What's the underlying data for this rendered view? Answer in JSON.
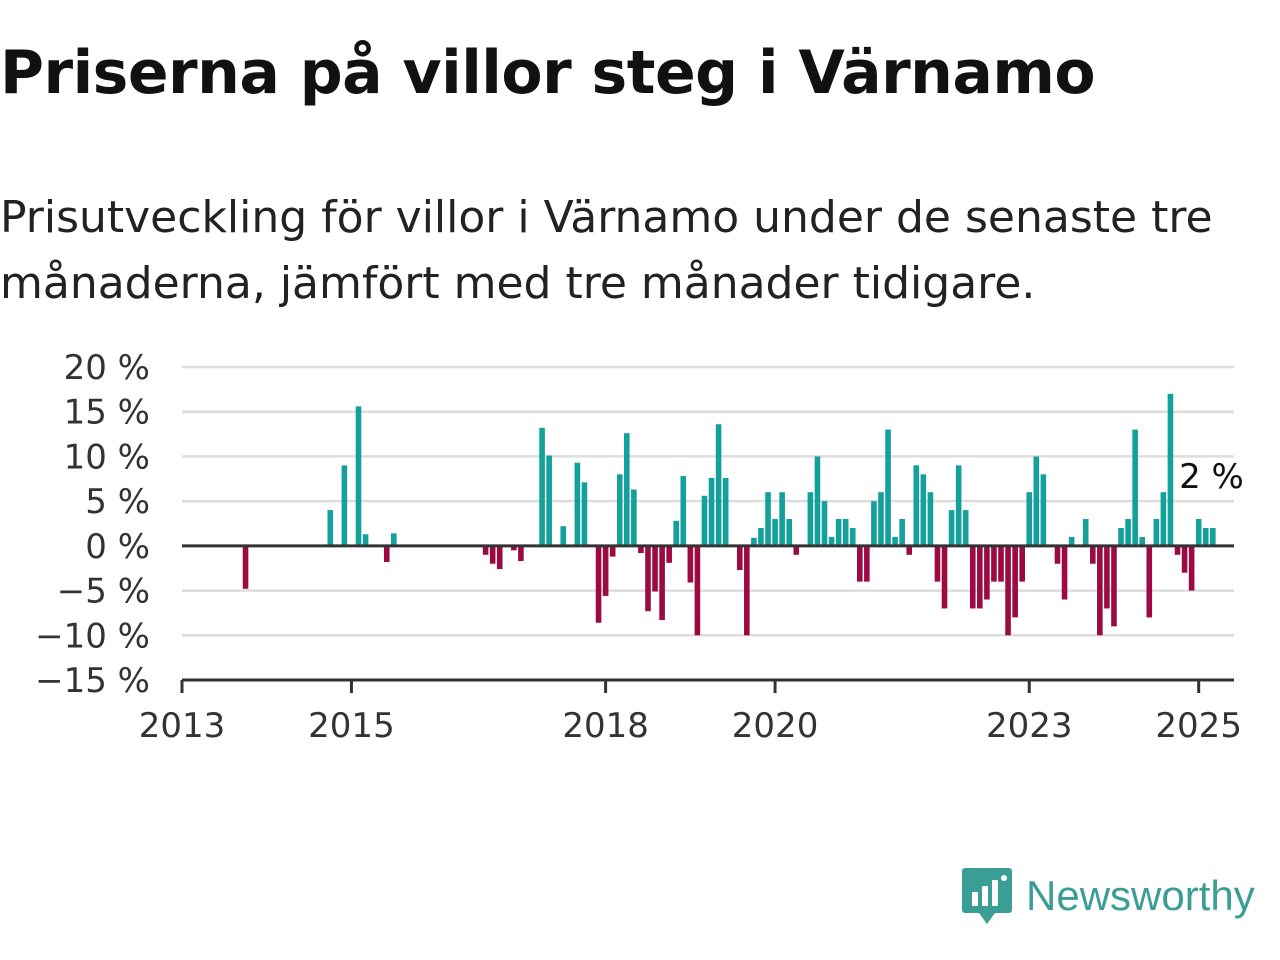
{
  "title": "Priserna på villor steg i Värnamo",
  "subtitle": "Prisutveckling för villor i Värnamo under de senaste tre månaderna, jämfört med tre månader tidigare.",
  "brand": "Newsworthy",
  "colors": {
    "positive": "#14a09b",
    "negative": "#9b0b42",
    "brand": "#3a9e96",
    "grid": "#dddddd",
    "axis": "#333333"
  },
  "chart_data": {
    "type": "bar",
    "y_ticks": [
      {
        "value": 20,
        "label": "20 %"
      },
      {
        "value": 15,
        "label": "15 %"
      },
      {
        "value": 10,
        "label": "10 %"
      },
      {
        "value": 5,
        "label": "5 %"
      },
      {
        "value": 0,
        "label": "0 %"
      },
      {
        "value": -5,
        "label": "−5 %"
      },
      {
        "value": -10,
        "label": "−10 %"
      },
      {
        "value": -15,
        "label": "−15 %"
      }
    ],
    "ylim": [
      -15,
      20
    ],
    "x_range": [
      "2013-01",
      "2025-06"
    ],
    "x_ticks": [
      {
        "date": "2013-01",
        "label": "2013"
      },
      {
        "date": "2015-01",
        "label": "2015"
      },
      {
        "date": "2018-01",
        "label": "2018"
      },
      {
        "date": "2020-01",
        "label": "2020"
      },
      {
        "date": "2023-01",
        "label": "2023"
      },
      {
        "date": "2025-01",
        "label": "2025"
      }
    ],
    "last_value_label": "2 %",
    "grid": true,
    "points": [
      {
        "x": "2013-10",
        "y": -4.8
      },
      {
        "x": "2014-10",
        "y": 4.0
      },
      {
        "x": "2014-12",
        "y": 9.0
      },
      {
        "x": "2015-02",
        "y": 15.6
      },
      {
        "x": "2015-03",
        "y": 1.3
      },
      {
        "x": "2015-06",
        "y": -1.8
      },
      {
        "x": "2015-07",
        "y": 1.4
      },
      {
        "x": "2016-08",
        "y": -1.0
      },
      {
        "x": "2016-09",
        "y": -2.0
      },
      {
        "x": "2016-10",
        "y": -2.6
      },
      {
        "x": "2016-12",
        "y": -0.5
      },
      {
        "x": "2017-01",
        "y": -1.7
      },
      {
        "x": "2017-04",
        "y": 13.2
      },
      {
        "x": "2017-05",
        "y": 10.1
      },
      {
        "x": "2017-07",
        "y": 2.2
      },
      {
        "x": "2017-09",
        "y": 9.3
      },
      {
        "x": "2017-10",
        "y": 7.1
      },
      {
        "x": "2017-12",
        "y": -8.6
      },
      {
        "x": "2018-01",
        "y": -5.6
      },
      {
        "x": "2018-02",
        "y": -1.2
      },
      {
        "x": "2018-03",
        "y": 8.0
      },
      {
        "x": "2018-04",
        "y": 12.6
      },
      {
        "x": "2018-05",
        "y": 6.3
      },
      {
        "x": "2018-06",
        "y": -0.8
      },
      {
        "x": "2018-07",
        "y": -7.3
      },
      {
        "x": "2018-08",
        "y": -5.1
      },
      {
        "x": "2018-09",
        "y": -8.3
      },
      {
        "x": "2018-10",
        "y": -1.9
      },
      {
        "x": "2018-11",
        "y": 2.8
      },
      {
        "x": "2018-12",
        "y": 7.8
      },
      {
        "x": "2019-01",
        "y": -4.1
      },
      {
        "x": "2019-02",
        "y": -10.0
      },
      {
        "x": "2019-03",
        "y": 5.6
      },
      {
        "x": "2019-04",
        "y": 7.6
      },
      {
        "x": "2019-05",
        "y": 13.6
      },
      {
        "x": "2019-06",
        "y": 7.6
      },
      {
        "x": "2019-08",
        "y": -2.7
      },
      {
        "x": "2019-09",
        "y": -10.0
      },
      {
        "x": "2019-10",
        "y": 0.9
      },
      {
        "x": "2019-11",
        "y": 2.0
      },
      {
        "x": "2019-12",
        "y": 6.0
      },
      {
        "x": "2020-01",
        "y": 3.0
      },
      {
        "x": "2020-02",
        "y": 6.0
      },
      {
        "x": "2020-03",
        "y": 3.0
      },
      {
        "x": "2020-04",
        "y": -1.0
      },
      {
        "x": "2020-06",
        "y": 6.0
      },
      {
        "x": "2020-07",
        "y": 10.0
      },
      {
        "x": "2020-08",
        "y": 5.0
      },
      {
        "x": "2020-09",
        "y": 1.0
      },
      {
        "x": "2020-10",
        "y": 3.0
      },
      {
        "x": "2020-11",
        "y": 3.0
      },
      {
        "x": "2020-12",
        "y": 2.0
      },
      {
        "x": "2021-01",
        "y": -4.0
      },
      {
        "x": "2021-02",
        "y": -4.0
      },
      {
        "x": "2021-03",
        "y": 5.0
      },
      {
        "x": "2021-04",
        "y": 6.0
      },
      {
        "x": "2021-05",
        "y": 13.0
      },
      {
        "x": "2021-06",
        "y": 1.0
      },
      {
        "x": "2021-07",
        "y": 3.0
      },
      {
        "x": "2021-08",
        "y": -1.0
      },
      {
        "x": "2021-09",
        "y": 9.0
      },
      {
        "x": "2021-10",
        "y": 8.0
      },
      {
        "x": "2021-11",
        "y": 6.0
      },
      {
        "x": "2021-12",
        "y": -4.0
      },
      {
        "x": "2022-01",
        "y": -7.0
      },
      {
        "x": "2022-02",
        "y": 4.0
      },
      {
        "x": "2022-03",
        "y": 9.0
      },
      {
        "x": "2022-04",
        "y": 4.0
      },
      {
        "x": "2022-05",
        "y": -7.0
      },
      {
        "x": "2022-06",
        "y": -7.0
      },
      {
        "x": "2022-07",
        "y": -6.0
      },
      {
        "x": "2022-08",
        "y": -4.0
      },
      {
        "x": "2022-09",
        "y": -4.0
      },
      {
        "x": "2022-10",
        "y": -10.0
      },
      {
        "x": "2022-11",
        "y": -8.0
      },
      {
        "x": "2022-12",
        "y": -4.0
      },
      {
        "x": "2023-01",
        "y": 6.0
      },
      {
        "x": "2023-02",
        "y": 10.0
      },
      {
        "x": "2023-03",
        "y": 8.0
      },
      {
        "x": "2023-05",
        "y": -2.0
      },
      {
        "x": "2023-06",
        "y": -6.0
      },
      {
        "x": "2023-07",
        "y": 1.0
      },
      {
        "x": "2023-09",
        "y": 3.0
      },
      {
        "x": "2023-10",
        "y": -2.0
      },
      {
        "x": "2023-11",
        "y": -10.0
      },
      {
        "x": "2023-12",
        "y": -7.0
      },
      {
        "x": "2024-01",
        "y": -9.0
      },
      {
        "x": "2024-02",
        "y": 2.0
      },
      {
        "x": "2024-03",
        "y": 3.0
      },
      {
        "x": "2024-04",
        "y": 13.0
      },
      {
        "x": "2024-05",
        "y": 1.0
      },
      {
        "x": "2024-06",
        "y": -8.0
      },
      {
        "x": "2024-07",
        "y": 3.0
      },
      {
        "x": "2024-08",
        "y": 6.0
      },
      {
        "x": "2024-09",
        "y": 17.0
      },
      {
        "x": "2024-10",
        "y": -1.0
      },
      {
        "x": "2024-11",
        "y": -3.0
      },
      {
        "x": "2024-12",
        "y": -5.0
      },
      {
        "x": "2025-01",
        "y": 3.0
      },
      {
        "x": "2025-02",
        "y": 2.0
      },
      {
        "x": "2025-03",
        "y": 2.0
      }
    ]
  }
}
